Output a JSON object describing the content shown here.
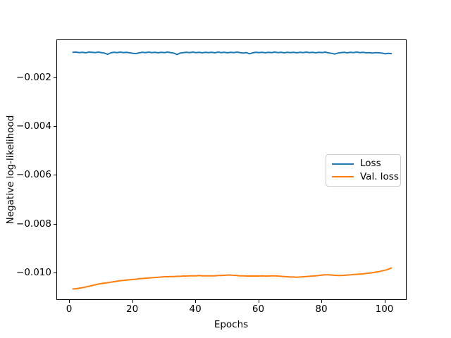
{
  "figure": {
    "background": "#ffffff",
    "axes_edge_color": "#000000"
  },
  "legend": {
    "items": [
      {
        "label": "Loss",
        "color": "#1f77b4"
      },
      {
        "label": "Val. loss",
        "color": "#ff7f0e"
      }
    ]
  },
  "chart_data": {
    "type": "line",
    "title": "",
    "xlabel": "Epochs",
    "ylabel": "Negative log-likelihood",
    "xlim": [
      -4.05,
      107.05
    ],
    "ylim": [
      -0.01113,
      -0.00045
    ],
    "grid": false,
    "legend_position": "center right",
    "xticks": [
      {
        "value": 0,
        "label": "0"
      },
      {
        "value": 20,
        "label": "20"
      },
      {
        "value": 40,
        "label": "40"
      },
      {
        "value": 60,
        "label": "60"
      },
      {
        "value": 80,
        "label": "80"
      },
      {
        "value": 100,
        "label": "100"
      }
    ],
    "yticks": [
      {
        "value": -0.002,
        "label": "−0.002"
      },
      {
        "value": -0.004,
        "label": "−0.004"
      },
      {
        "value": -0.006,
        "label": "−0.006"
      },
      {
        "value": -0.008,
        "label": "−0.008"
      },
      {
        "value": -0.01,
        "label": "−0.010"
      }
    ],
    "x": [
      1,
      2,
      3,
      4,
      5,
      6,
      7,
      8,
      9,
      10,
      11,
      12,
      13,
      14,
      15,
      16,
      17,
      18,
      19,
      20,
      21,
      22,
      23,
      24,
      25,
      26,
      27,
      28,
      29,
      30,
      31,
      32,
      33,
      34,
      35,
      36,
      37,
      38,
      39,
      40,
      41,
      42,
      43,
      44,
      45,
      46,
      47,
      48,
      49,
      50,
      51,
      52,
      53,
      54,
      55,
      56,
      57,
      58,
      59,
      60,
      61,
      62,
      63,
      64,
      65,
      66,
      67,
      68,
      69,
      70,
      71,
      72,
      73,
      74,
      75,
      76,
      77,
      78,
      79,
      80,
      81,
      82,
      83,
      84,
      85,
      86,
      87,
      88,
      89,
      90,
      91,
      92,
      93,
      94,
      95,
      96,
      97,
      98,
      99,
      100,
      101,
      102
    ],
    "series": [
      {
        "name": "Loss",
        "color": "#1f77b4",
        "values": [
          -0.00095,
          -0.00094,
          -0.00096,
          -0.00095,
          -0.00097,
          -0.00094,
          -0.00095,
          -0.00096,
          -0.00094,
          -0.00096,
          -0.00098,
          -0.00103,
          -0.00097,
          -0.00095,
          -0.00096,
          -0.00094,
          -0.00096,
          -0.00095,
          -0.00097,
          -0.00099,
          -0.001,
          -0.00097,
          -0.00095,
          -0.00096,
          -0.00094,
          -0.00096,
          -0.00095,
          -0.00097,
          -0.00095,
          -0.00096,
          -0.00094,
          -0.00096,
          -0.00098,
          -0.00104,
          -0.00098,
          -0.00096,
          -0.00095,
          -0.00096,
          -0.00094,
          -0.00096,
          -0.00095,
          -0.00097,
          -0.00095,
          -0.00096,
          -0.00095,
          -0.00097,
          -0.00094,
          -0.00096,
          -0.00095,
          -0.00097,
          -0.00095,
          -0.00096,
          -0.00094,
          -0.00096,
          -0.00098,
          -0.00096,
          -0.00101,
          -0.00097,
          -0.00095,
          -0.00096,
          -0.00095,
          -0.00097,
          -0.00095,
          -0.00096,
          -0.00094,
          -0.00096,
          -0.00095,
          -0.00097,
          -0.00095,
          -0.00096,
          -0.00095,
          -0.00097,
          -0.00095,
          -0.00096,
          -0.00094,
          -0.00096,
          -0.00095,
          -0.00097,
          -0.00095,
          -0.00096,
          -0.00094,
          -0.00097,
          -0.00099,
          -0.00102,
          -0.00098,
          -0.00096,
          -0.00095,
          -0.00097,
          -0.00095,
          -0.00096,
          -0.00094,
          -0.00096,
          -0.00095,
          -0.00097,
          -0.00096,
          -0.00098,
          -0.00096,
          -0.00097,
          -0.00098,
          -0.00101,
          -0.00099,
          -0.001
        ]
      },
      {
        "name": "Val. loss",
        "color": "#ff7f0e",
        "values": [
          -0.01065,
          -0.01064,
          -0.01062,
          -0.0106,
          -0.01057,
          -0.01054,
          -0.01051,
          -0.01048,
          -0.01045,
          -0.01043,
          -0.01041,
          -0.01039,
          -0.01037,
          -0.01035,
          -0.01033,
          -0.01031,
          -0.0103,
          -0.01028,
          -0.01027,
          -0.01026,
          -0.01025,
          -0.01023,
          -0.01022,
          -0.01021,
          -0.0102,
          -0.01019,
          -0.01018,
          -0.01017,
          -0.01016,
          -0.01015,
          -0.01015,
          -0.01014,
          -0.01014,
          -0.01013,
          -0.01013,
          -0.01012,
          -0.01012,
          -0.01011,
          -0.01011,
          -0.01011,
          -0.0101,
          -0.01011,
          -0.01011,
          -0.01011,
          -0.01011,
          -0.01011,
          -0.0101,
          -0.0101,
          -0.01009,
          -0.01008,
          -0.01008,
          -0.01009,
          -0.0101,
          -0.01011,
          -0.01011,
          -0.01012,
          -0.01012,
          -0.01012,
          -0.01012,
          -0.01012,
          -0.01011,
          -0.01012,
          -0.01012,
          -0.01011,
          -0.01011,
          -0.01012,
          -0.01013,
          -0.01014,
          -0.01015,
          -0.01016,
          -0.01016,
          -0.01017,
          -0.01016,
          -0.01015,
          -0.01014,
          -0.01013,
          -0.01012,
          -0.01011,
          -0.0101,
          -0.01008,
          -0.01007,
          -0.01007,
          -0.01008,
          -0.01009,
          -0.0101,
          -0.0101,
          -0.01009,
          -0.01008,
          -0.01007,
          -0.01006,
          -0.01005,
          -0.01004,
          -0.01003,
          -0.01001,
          -0.01,
          -0.00998,
          -0.00996,
          -0.00994,
          -0.00991,
          -0.00988,
          -0.00984,
          -0.00979
        ]
      }
    ]
  }
}
